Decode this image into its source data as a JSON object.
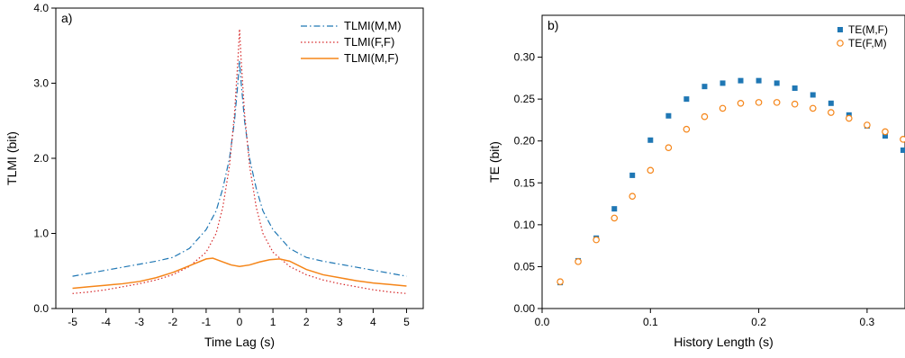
{
  "chart_data": [
    {
      "type": "line",
      "panel_label": "a)",
      "xlabel": "Time Lag (s)",
      "ylabel": "TLMI (bit)",
      "xlim": [
        -5.5,
        5.5
      ],
      "ylim": [
        0,
        4
      ],
      "xticks": [
        "-5",
        "-4",
        "-3",
        "-2",
        "-1",
        "0",
        "1",
        "2",
        "3",
        "4",
        "5"
      ],
      "yticks": [
        "0.0",
        "1.0",
        "2.0",
        "3.0",
        "4.0"
      ],
      "legend_position": "top-right",
      "grid": false,
      "series": [
        {
          "name": "TLMI(M,M)",
          "color": "#1f77b4",
          "style": "dashdot",
          "points": [
            [
              -5,
              0.43
            ],
            [
              -4.5,
              0.47
            ],
            [
              -4,
              0.51
            ],
            [
              -3.5,
              0.55
            ],
            [
              -3,
              0.59
            ],
            [
              -2.5,
              0.63
            ],
            [
              -2,
              0.68
            ],
            [
              -1.5,
              0.8
            ],
            [
              -1,
              1.05
            ],
            [
              -0.7,
              1.3
            ],
            [
              -0.5,
              1.6
            ],
            [
              -0.3,
              2.0
            ],
            [
              -0.15,
              2.5
            ],
            [
              -0.05,
              3.0
            ],
            [
              0,
              3.3
            ],
            [
              0.05,
              3.0
            ],
            [
              0.15,
              2.5
            ],
            [
              0.3,
              2.0
            ],
            [
              0.5,
              1.6
            ],
            [
              0.7,
              1.3
            ],
            [
              1,
              1.05
            ],
            [
              1.5,
              0.8
            ],
            [
              2,
              0.68
            ],
            [
              2.5,
              0.63
            ],
            [
              3,
              0.59
            ],
            [
              3.5,
              0.55
            ],
            [
              4,
              0.51
            ],
            [
              4.5,
              0.47
            ],
            [
              5,
              0.43
            ]
          ]
        },
        {
          "name": "TLMI(F,F)",
          "color": "#d62728",
          "style": "dotted",
          "points": [
            [
              -5,
              0.2
            ],
            [
              -4.5,
              0.22
            ],
            [
              -4,
              0.25
            ],
            [
              -3.5,
              0.29
            ],
            [
              -3,
              0.33
            ],
            [
              -2.5,
              0.38
            ],
            [
              -2,
              0.45
            ],
            [
              -1.5,
              0.56
            ],
            [
              -1,
              0.75
            ],
            [
              -0.7,
              1.0
            ],
            [
              -0.5,
              1.35
            ],
            [
              -0.3,
              1.9
            ],
            [
              -0.15,
              2.6
            ],
            [
              -0.05,
              3.3
            ],
            [
              0,
              3.72
            ],
            [
              0.05,
              3.3
            ],
            [
              0.15,
              2.6
            ],
            [
              0.3,
              1.9
            ],
            [
              0.5,
              1.35
            ],
            [
              0.7,
              1.0
            ],
            [
              1,
              0.75
            ],
            [
              1.5,
              0.56
            ],
            [
              2,
              0.45
            ],
            [
              2.5,
              0.38
            ],
            [
              3,
              0.33
            ],
            [
              3.5,
              0.29
            ],
            [
              4,
              0.25
            ],
            [
              4.5,
              0.22
            ],
            [
              5,
              0.2
            ]
          ]
        },
        {
          "name": "TLMI(M,F)",
          "color": "#f58518",
          "style": "solid",
          "points": [
            [
              -5,
              0.27
            ],
            [
              -4.5,
              0.29
            ],
            [
              -4,
              0.31
            ],
            [
              -3.5,
              0.33
            ],
            [
              -3,
              0.36
            ],
            [
              -2.5,
              0.41
            ],
            [
              -2,
              0.48
            ],
            [
              -1.5,
              0.57
            ],
            [
              -1,
              0.66
            ],
            [
              -0.8,
              0.67
            ],
            [
              -0.5,
              0.62
            ],
            [
              -0.25,
              0.58
            ],
            [
              0,
              0.56
            ],
            [
              0.3,
              0.58
            ],
            [
              0.6,
              0.62
            ],
            [
              0.9,
              0.65
            ],
            [
              1.2,
              0.66
            ],
            [
              1.5,
              0.63
            ],
            [
              2,
              0.52
            ],
            [
              2.5,
              0.45
            ],
            [
              3,
              0.41
            ],
            [
              3.5,
              0.37
            ],
            [
              4,
              0.34
            ],
            [
              4.5,
              0.32
            ],
            [
              5,
              0.3
            ]
          ]
        }
      ]
    },
    {
      "type": "scatter",
      "panel_label": "b)",
      "xlabel": "History Length (s)",
      "ylabel": "TE (bit)",
      "xlim": [
        0,
        0.335
      ],
      "ylim": [
        0,
        0.35
      ],
      "xticks": [
        "0.0",
        "0.1",
        "0.2",
        "0.3"
      ],
      "yticks": [
        "0.00",
        "0.05",
        "0.10",
        "0.15",
        "0.20",
        "0.25",
        "0.30"
      ],
      "legend_position": "top-right",
      "grid": false,
      "series": [
        {
          "name": "TE(M,F)",
          "color": "#1f77b4",
          "marker": "filled-square",
          "points": [
            [
              0.0167,
              0.031
            ],
            [
              0.0333,
              0.057
            ],
            [
              0.05,
              0.084
            ],
            [
              0.0667,
              0.119
            ],
            [
              0.0833,
              0.159
            ],
            [
              0.1,
              0.201
            ],
            [
              0.1167,
              0.23
            ],
            [
              0.1333,
              0.25
            ],
            [
              0.15,
              0.265
            ],
            [
              0.1667,
              0.269
            ],
            [
              0.1833,
              0.272
            ],
            [
              0.2,
              0.272
            ],
            [
              0.2167,
              0.269
            ],
            [
              0.2333,
              0.263
            ],
            [
              0.25,
              0.255
            ],
            [
              0.2667,
              0.245
            ],
            [
              0.2833,
              0.231
            ],
            [
              0.3,
              0.218
            ],
            [
              0.3167,
              0.206
            ],
            [
              0.3333,
              0.189
            ]
          ]
        },
        {
          "name": "TE(F,M)",
          "color": "#f58518",
          "marker": "open-circle",
          "points": [
            [
              0.0167,
              0.032
            ],
            [
              0.0333,
              0.056
            ],
            [
              0.05,
              0.082
            ],
            [
              0.0667,
              0.108
            ],
            [
              0.0833,
              0.134
            ],
            [
              0.1,
              0.165
            ],
            [
              0.1167,
              0.192
            ],
            [
              0.1333,
              0.214
            ],
            [
              0.15,
              0.229
            ],
            [
              0.1667,
              0.239
            ],
            [
              0.1833,
              0.245
            ],
            [
              0.2,
              0.246
            ],
            [
              0.2167,
              0.246
            ],
            [
              0.2333,
              0.244
            ],
            [
              0.25,
              0.239
            ],
            [
              0.2667,
              0.234
            ],
            [
              0.2833,
              0.227
            ],
            [
              0.3,
              0.219
            ],
            [
              0.3167,
              0.211
            ],
            [
              0.3333,
              0.202
            ]
          ]
        }
      ]
    }
  ]
}
